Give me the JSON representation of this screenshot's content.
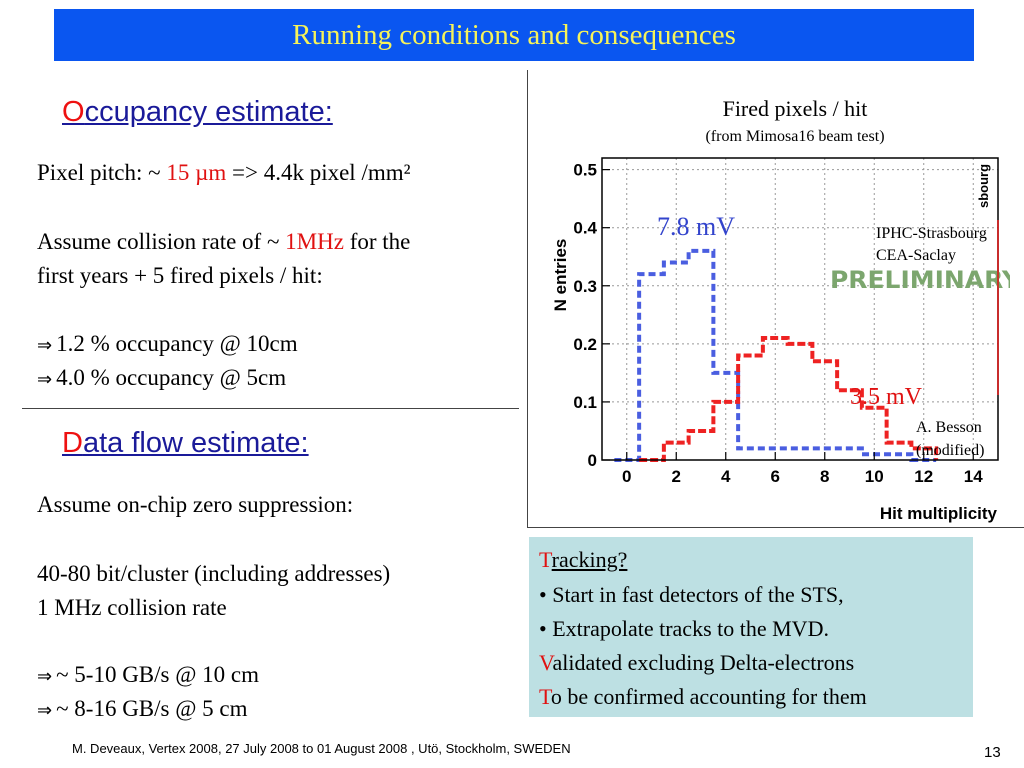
{
  "slide": {
    "title": "Running conditions and consequences",
    "page_number": "13",
    "footer": "M. Deveaux, Vertex 2008, 27 July 2008 to 01 August 2008 , Utö, Stockholm, SWEDEN"
  },
  "occupancy": {
    "heading_initial": "O",
    "heading_rest": "ccupancy estimate:",
    "pitch_pre": "Pixel pitch: ~ ",
    "pitch_value": "15 µm",
    "pitch_post": " => 4.4k pixel /mm²",
    "rate_pre": "Assume collision rate of ~ ",
    "rate_value": "1MHz",
    "rate_post": " for the",
    "rate_line2": "first years + 5 fired pixels / hit:",
    "arrow": "⇒",
    "result1": "1.2 % occupancy @ 10cm",
    "result2": "4.0 % occupancy @ 5cm"
  },
  "dataflow": {
    "heading_initial": "D",
    "heading_rest": "ata flow estimate:",
    "line1": "Assume on-chip zero suppression:",
    "line2": "40-80 bit/cluster (including addresses)",
    "line3": "1 MHz collision rate",
    "arrow": "⇒",
    "result1": "~ 5-10 GB/s @ 10 cm",
    "result2": "~ 8-16 GB/s @   5 cm"
  },
  "plot": {
    "title": "Fired pixels / hit",
    "subtitle": "(from Mimosa16 beam test)",
    "label_78": "7.8 mV",
    "label_35": "3.5 mV",
    "inst1": "IPHC-Strasbourg",
    "inst2": "CEA-Saclay",
    "preliminary": "PRELIMINARY",
    "credit1": "A. Besson",
    "credit2": "(modified)",
    "cut_label": "sbourg"
  },
  "chart_data": {
    "type": "line",
    "xlabel": "Hit multiplicity",
    "ylabel": "N entries",
    "xlim": [
      -1,
      15
    ],
    "ylim": [
      0,
      0.52
    ],
    "x_ticks": [
      "0",
      "2",
      "4",
      "6",
      "8",
      "10",
      "12",
      "14"
    ],
    "y_ticks": [
      "0",
      "0.1",
      "0.2",
      "0.3",
      "0.4",
      "0.5"
    ],
    "grid": true,
    "series": [
      {
        "name": "7.8 mV",
        "color": "#4a5ee0",
        "x": [
          0,
          1,
          2,
          3,
          4,
          5,
          6,
          7,
          8,
          9,
          10,
          11,
          12
        ],
        "y": [
          0.0,
          0.32,
          0.34,
          0.36,
          0.15,
          0.02,
          0.02,
          0.02,
          0.02,
          0.02,
          0.01,
          0.01,
          0.0
        ]
      },
      {
        "name": "3.5 mV",
        "color": "#ee2222",
        "x": [
          1,
          2,
          3,
          4,
          5,
          6,
          7,
          8,
          9,
          10,
          11,
          12
        ],
        "y": [
          0.0,
          0.03,
          0.05,
          0.1,
          0.18,
          0.21,
          0.2,
          0.17,
          0.12,
          0.09,
          0.03,
          0.02
        ]
      }
    ]
  },
  "tracking": {
    "t_init": "T",
    "t_rest": "racking?",
    "b1": "• Start in fast detectors of the STS,",
    "b2": "• Extrapolate tracks to the MVD.",
    "v_init": "V",
    "v_rest": "alidated excluding Delta-electrons",
    "c_init": "T",
    "c_rest": "o be confirmed accounting for them"
  }
}
